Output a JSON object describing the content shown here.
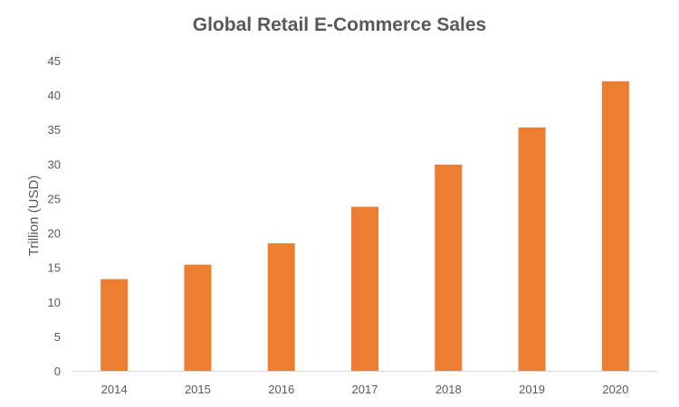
{
  "chart_data": {
    "type": "bar",
    "title": "Global Retail E-Commerce Sales",
    "xlabel": "",
    "ylabel": "Trillion (USD)",
    "categories": [
      "2014",
      "2015",
      "2016",
      "2017",
      "2018",
      "2019",
      "2020"
    ],
    "values": [
      13.3,
      15.4,
      18.5,
      23.8,
      29.9,
      35.3,
      42.0
    ],
    "ylim": [
      0,
      45
    ],
    "yticks": [
      0,
      5,
      10,
      15,
      20,
      25,
      30,
      35,
      40,
      45
    ],
    "grid": false,
    "legend": "none",
    "bar_color": "#ED7D31"
  }
}
